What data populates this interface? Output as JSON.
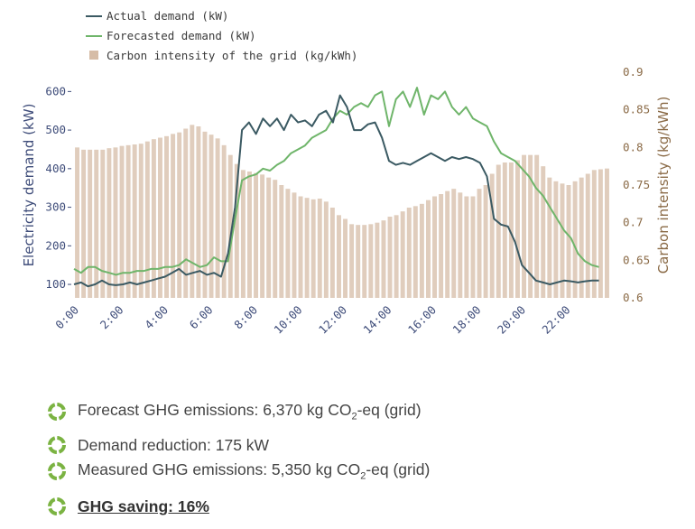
{
  "colors": {
    "actual": "#3b5a63",
    "forecast": "#6fb56a",
    "bars": "#e0cdbd",
    "left_axis": "#3f4d7a",
    "right_axis": "#8a6a46",
    "bullet": "#7bb342"
  },
  "chart_data": {
    "type": "line+bar",
    "legend": [
      "Actual demand (kW)",
      "Forecasted demand (kW)",
      "Carbon intensity of the grid (kg/kWh)"
    ],
    "ylabel_left": "Electricity demand (kW)",
    "ylabel_right": "Carbon intensity (kg/kWh)",
    "y_left_ticks": [
      "600",
      "500",
      "400",
      "300",
      "200",
      "100"
    ],
    "y_right_ticks": [
      "0.9",
      "0.85",
      "0.8",
      "0.75",
      "0.7",
      "0.65",
      "0.6"
    ],
    "x_ticks": [
      "0:00",
      "2:00",
      "4:00",
      "6:00",
      "8:00",
      "10:00",
      "12:00",
      "14:00",
      "16:00",
      "18:00",
      "20:00",
      "22:00"
    ],
    "x_unit": "hour",
    "ylim_left": [
      65,
      650
    ],
    "ylim_right": [
      0.6,
      0.9
    ],
    "series": [
      {
        "name": "Actual demand (kW)",
        "values": [
          100,
          105,
          95,
          100,
          110,
          100,
          98,
          100,
          105,
          100,
          105,
          110,
          115,
          120,
          130,
          140,
          125,
          130,
          135,
          125,
          130,
          120,
          180,
          300,
          500,
          520,
          490,
          530,
          510,
          530,
          500,
          540,
          520,
          525,
          510,
          540,
          550,
          520,
          590,
          560,
          500,
          500,
          515,
          520,
          480,
          420,
          410,
          415,
          410,
          420,
          430,
          440,
          430,
          420,
          430,
          425,
          430,
          425,
          415,
          380,
          270,
          255,
          250,
          210,
          150,
          130,
          110,
          105,
          100,
          105,
          110,
          108,
          105,
          108,
          110,
          110
        ]
      },
      {
        "name": "Forecasted demand (kW)",
        "values": [
          140,
          130,
          145,
          145,
          135,
          130,
          125,
          130,
          130,
          135,
          135,
          140,
          140,
          145,
          145,
          150,
          165,
          155,
          145,
          150,
          170,
          160,
          160,
          270,
          370,
          380,
          385,
          400,
          395,
          410,
          420,
          440,
          450,
          460,
          480,
          490,
          500,
          530,
          550,
          540,
          560,
          570,
          560,
          590,
          600,
          510,
          580,
          600,
          560,
          610,
          540,
          590,
          580,
          600,
          560,
          540,
          560,
          530,
          520,
          510,
          470,
          440,
          430,
          420,
          400,
          380,
          350,
          330,
          300,
          270,
          240,
          220,
          180,
          160,
          150,
          145
        ]
      },
      {
        "name": "Carbon intensity of the grid (kg/kWh)",
        "values": [
          0.8,
          0.797,
          0.797,
          0.797,
          0.797,
          0.799,
          0.8,
          0.802,
          0.803,
          0.804,
          0.805,
          0.808,
          0.811,
          0.813,
          0.815,
          0.818,
          0.82,
          0.825,
          0.83,
          0.828,
          0.821,
          0.817,
          0.812,
          0.803,
          0.79,
          0.778,
          0.77,
          0.768,
          0.766,
          0.764,
          0.76,
          0.757,
          0.75,
          0.745,
          0.74,
          0.735,
          0.733,
          0.731,
          0.732,
          0.728,
          0.72,
          0.71,
          0.705,
          0.698,
          0.697,
          0.697,
          0.698,
          0.7,
          0.703,
          0.708,
          0.71,
          0.715,
          0.72,
          0.722,
          0.725,
          0.73,
          0.735,
          0.738,
          0.742,
          0.745,
          0.74,
          0.735,
          0.735,
          0.745,
          0.75,
          0.765,
          0.777,
          0.78,
          0.78,
          0.783,
          0.79,
          0.79,
          0.79,
          0.775,
          0.76,
          0.755,
          0.752,
          0.75,
          0.755,
          0.76,
          0.765,
          0.77,
          0.771,
          0.772
        ]
      }
    ]
  },
  "bullets": [
    {
      "pre": "Forecast GHG emissions: 6,370 kg CO",
      "sub": "2",
      "post": "-eq (grid)"
    },
    {
      "pre": "Demand reduction: 175 kW",
      "sub": "",
      "post": ""
    },
    {
      "pre": "Measured GHG emissions:  5,350 kg CO",
      "sub": "2",
      "post": "-eq (grid)"
    },
    {
      "pre": "GHG saving: 16%",
      "sub": "",
      "post": ""
    }
  ]
}
